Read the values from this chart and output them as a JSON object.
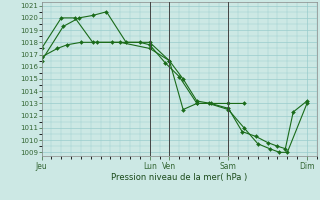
{
  "xlabel": "Pression niveau de la mer( hPa )",
  "ylim": [
    1009,
    1021
  ],
  "yticks": [
    1009,
    1010,
    1011,
    1012,
    1013,
    1014,
    1015,
    1016,
    1017,
    1018,
    1019,
    1020,
    1021
  ],
  "xlim": [
    0,
    14
  ],
  "background_color": "#cce8e4",
  "grid_color": "#99cccc",
  "line_color": "#1a6b1a",
  "vline_color": "#444444",
  "tick_label_color": "#336633",
  "xlabel_color": "#1a4a1a",
  "day_ticks": [
    0,
    5.5,
    6.5,
    9.5,
    13.5
  ],
  "day_labels": [
    "Jeu",
    "Lun",
    "Ven",
    "Sam",
    "Dim"
  ],
  "vline_positions": [
    5.5,
    6.5,
    9.5
  ],
  "series1": {
    "x": [
      0.0,
      1.1,
      1.9,
      2.6,
      3.3,
      4.3,
      5.5,
      6.5,
      7.2,
      7.9,
      8.6,
      9.5,
      10.2,
      10.9,
      11.5,
      12.0,
      12.4,
      12.8,
      13.5
    ],
    "y": [
      1016.5,
      1019.3,
      1020.0,
      1020.2,
      1020.5,
      1018.0,
      1018.0,
      1016.5,
      1015.0,
      1013.2,
      1013.0,
      1012.6,
      1010.7,
      1010.3,
      1009.8,
      1009.5,
      1009.3,
      1012.3,
      1013.2
    ]
  },
  "series2": {
    "x": [
      0.0,
      1.0,
      1.7,
      2.6,
      3.6,
      5.0,
      5.5,
      6.3,
      7.0,
      7.9,
      9.5,
      10.3
    ],
    "y": [
      1017.5,
      1020.0,
      1020.0,
      1018.0,
      1018.0,
      1018.0,
      1017.8,
      1016.3,
      1015.2,
      1013.0,
      1013.0,
      1013.0
    ]
  },
  "series3": {
    "x": [
      0.0,
      0.8,
      1.3,
      2.0,
      2.8,
      4.0,
      5.5,
      6.5,
      7.2,
      7.9,
      8.5,
      9.5,
      10.3,
      11.0,
      11.6,
      12.1,
      12.5,
      13.5
    ],
    "y": [
      1016.8,
      1017.5,
      1017.8,
      1018.0,
      1018.0,
      1018.0,
      1017.5,
      1016.5,
      1012.5,
      1013.0,
      1013.0,
      1012.5,
      1011.0,
      1009.7,
      1009.3,
      1009.0,
      1009.0,
      1013.0
    ]
  }
}
